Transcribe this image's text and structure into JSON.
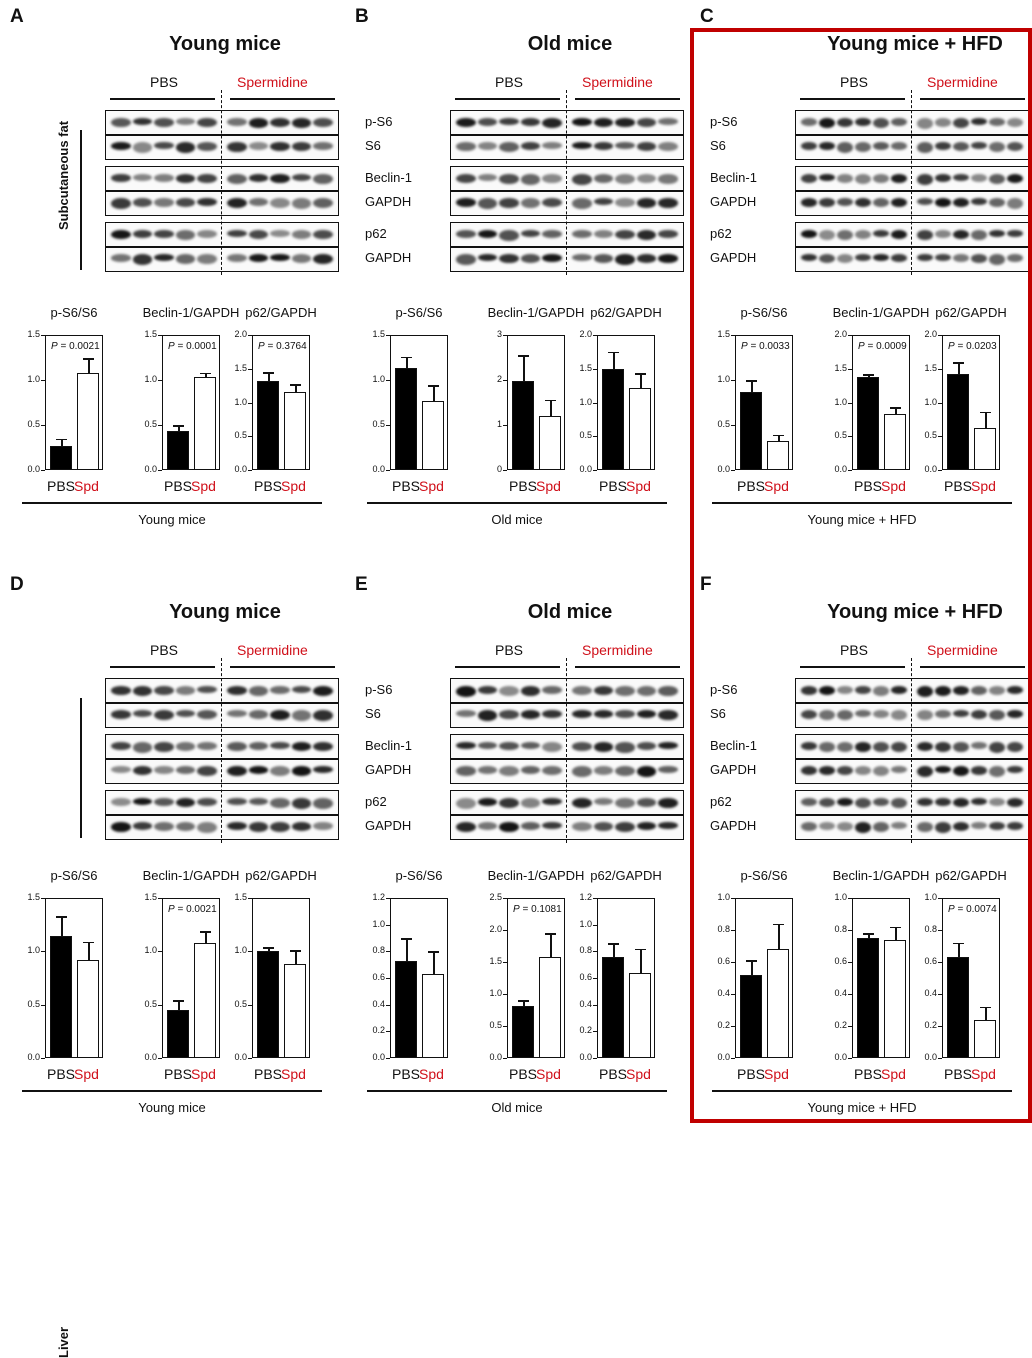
{
  "colors": {
    "pbs_bar": "#000000",
    "spd_bar": "#ffffff",
    "accent_red": "#d0101a",
    "highlight_frame": "#c00000"
  },
  "panels": [
    {
      "letter": "A",
      "title": "Young mice",
      "pbs_label": "PBS",
      "spd_label": "Spermidine",
      "side_label": "Subcutaneous fat",
      "row_labels": [],
      "group_label": "Young mice"
    },
    {
      "letter": "B",
      "title": "Old mice",
      "pbs_label": "PBS",
      "spd_label": "Spermidine",
      "side_label": "",
      "row_labels": [
        "p-S6",
        "S6",
        "Beclin-1",
        "GAPDH",
        "p62",
        "GAPDH"
      ],
      "group_label": "Old mice"
    },
    {
      "letter": "C",
      "title": "Young mice + HFD",
      "pbs_label": "PBS",
      "spd_label": "Spermidine",
      "side_label": "",
      "row_labels": [
        "p-S6",
        "S6",
        "Beclin-1",
        "GAPDH",
        "p62",
        "GAPDH"
      ],
      "group_label": "Young mice + HFD"
    },
    {
      "letter": "D",
      "title": "Young mice",
      "pbs_label": "PBS",
      "spd_label": "Spermidine",
      "side_label": "Liver",
      "row_labels": [],
      "group_label": "Young mice"
    },
    {
      "letter": "E",
      "title": "Old mice",
      "pbs_label": "PBS",
      "spd_label": "Spermidine",
      "side_label": "",
      "row_labels": [
        "p-S6",
        "S6",
        "Beclin-1",
        "GAPDH",
        "p62",
        "GAPDH"
      ],
      "group_label": "Old mice"
    },
    {
      "letter": "F",
      "title": "Young mice + HFD",
      "pbs_label": "PBS",
      "spd_label": "Spermidine",
      "side_label": "",
      "row_labels": [
        "p-S6",
        "S6",
        "Beclin-1",
        "GAPDH",
        "p62",
        "GAPDH"
      ],
      "group_label": "Young mice + HFD"
    }
  ],
  "chart_data": [
    {
      "panel": "A",
      "type": "bar",
      "title": "p-S6/S6",
      "categories": [
        "PBS",
        "Spd"
      ],
      "values": [
        0.27,
        1.08
      ],
      "errors": [
        0.08,
        0.16
      ],
      "ylim": [
        0,
        1.5
      ],
      "yticks": [
        "0.0",
        "0.5",
        "1.0",
        "1.5"
      ],
      "p_symbol": "P",
      "p_value": "= 0.0021"
    },
    {
      "panel": "A",
      "type": "bar",
      "title": "Beclin-1/GAPDH",
      "categories": [
        "PBS",
        "Spd"
      ],
      "values": [
        0.43,
        1.03
      ],
      "errors": [
        0.07,
        0.05
      ],
      "ylim": [
        0,
        1.5
      ],
      "yticks": [
        "0.0",
        "0.5",
        "1.0",
        "1.5"
      ],
      "p_symbol": "P",
      "p_value": "= 0.0001"
    },
    {
      "panel": "A",
      "type": "bar",
      "title": "p62/GAPDH",
      "categories": [
        "PBS",
        "Spd"
      ],
      "values": [
        1.32,
        1.15
      ],
      "errors": [
        0.13,
        0.12
      ],
      "ylim": [
        0,
        2.0
      ],
      "yticks": [
        "0.0",
        "0.5",
        "1.0",
        "1.5",
        "2.0"
      ],
      "p_symbol": "P",
      "p_value": "= 0.3764"
    },
    {
      "panel": "B",
      "type": "bar",
      "title": "p-S6/S6",
      "categories": [
        "PBS",
        "Spd"
      ],
      "values": [
        1.13,
        0.77
      ],
      "errors": [
        0.13,
        0.17
      ],
      "ylim": [
        0,
        1.5
      ],
      "yticks": [
        "0.0",
        "0.5",
        "1.0",
        "1.5"
      ]
    },
    {
      "panel": "B",
      "type": "bar",
      "title": "Beclin-1/GAPDH",
      "categories": [
        "PBS",
        "Spd"
      ],
      "values": [
        1.98,
        1.2
      ],
      "errors": [
        0.57,
        0.36
      ],
      "ylim": [
        0,
        3
      ],
      "yticks": [
        "0",
        "1",
        "2",
        "3"
      ]
    },
    {
      "panel": "B",
      "type": "bar",
      "title": "p62/GAPDH",
      "categories": [
        "PBS",
        "Spd"
      ],
      "values": [
        1.5,
        1.21
      ],
      "errors": [
        0.25,
        0.22
      ],
      "ylim": [
        0,
        2.0
      ],
      "yticks": [
        "0.0",
        "0.5",
        "1.0",
        "1.5",
        "2.0"
      ]
    },
    {
      "panel": "C",
      "type": "bar",
      "title": "p-S6/S6",
      "categories": [
        "PBS",
        "Spd"
      ],
      "values": [
        0.87,
        0.32
      ],
      "errors": [
        0.13,
        0.07
      ],
      "ylim": [
        0,
        1.5
      ],
      "yticks": [
        "0.0",
        "0.5",
        "1.0",
        "1.5"
      ],
      "p_symbol": "P",
      "p_value": "= 0.0033"
    },
    {
      "panel": "C",
      "type": "bar",
      "title": "Beclin-1/GAPDH",
      "categories": [
        "PBS",
        "Spd"
      ],
      "values": [
        1.38,
        0.83
      ],
      "errors": [
        0.04,
        0.1
      ],
      "ylim": [
        0,
        2.0
      ],
      "yticks": [
        "0.0",
        "0.5",
        "1.0",
        "1.5",
        "2.0"
      ],
      "p_symbol": "P",
      "p_value": "= 0.0009"
    },
    {
      "panel": "C",
      "type": "bar",
      "title": "p62/GAPDH",
      "categories": [
        "PBS",
        "Spd"
      ],
      "values": [
        1.42,
        0.62
      ],
      "errors": [
        0.18,
        0.24
      ],
      "ylim": [
        0,
        2.0
      ],
      "yticks": [
        "0.0",
        "0.5",
        "1.0",
        "1.5",
        "2.0"
      ],
      "p_symbol": "P",
      "p_value": "= 0.0203"
    },
    {
      "panel": "D",
      "type": "bar",
      "title": "p-S6/S6",
      "categories": [
        "PBS",
        "Spd"
      ],
      "values": [
        1.14,
        0.92
      ],
      "errors": [
        0.19,
        0.17
      ],
      "ylim": [
        0,
        1.5
      ],
      "yticks": [
        "0.0",
        "0.5",
        "1.0",
        "1.5"
      ]
    },
    {
      "panel": "D",
      "type": "bar",
      "title": "Beclin-1/GAPDH",
      "categories": [
        "PBS",
        "Spd"
      ],
      "values": [
        0.45,
        1.08
      ],
      "errors": [
        0.09,
        0.11
      ],
      "ylim": [
        0,
        1.5
      ],
      "yticks": [
        "0.0",
        "0.5",
        "1.0",
        "1.5"
      ],
      "p_symbol": "P",
      "p_value": "= 0.0021"
    },
    {
      "panel": "D",
      "type": "bar",
      "title": "p62/GAPDH",
      "categories": [
        "PBS",
        "Spd"
      ],
      "values": [
        1.0,
        0.88
      ],
      "errors": [
        0.04,
        0.13
      ],
      "ylim": [
        0,
        1.5
      ],
      "yticks": [
        "0.0",
        "0.5",
        "1.0",
        "1.5"
      ]
    },
    {
      "panel": "E",
      "type": "bar",
      "title": "p-S6/S6",
      "categories": [
        "PBS",
        "Spd"
      ],
      "values": [
        0.73,
        0.63
      ],
      "errors": [
        0.17,
        0.17
      ],
      "ylim": [
        0,
        1.2
      ],
      "yticks": [
        "0.0",
        "0.2",
        "0.4",
        "0.6",
        "0.8",
        "1.0",
        "1.2"
      ]
    },
    {
      "panel": "E",
      "type": "bar",
      "title": "Beclin-1/GAPDH",
      "categories": [
        "PBS",
        "Spd"
      ],
      "values": [
        0.82,
        1.58
      ],
      "errors": [
        0.08,
        0.37
      ],
      "ylim": [
        0,
        2.5
      ],
      "yticks": [
        "0.0",
        "0.5",
        "1.0",
        "1.5",
        "2.0",
        "2.5"
      ],
      "p_symbol": "P",
      "p_value": "= 0.1081"
    },
    {
      "panel": "E",
      "type": "bar",
      "title": "p62/GAPDH",
      "categories": [
        "PBS",
        "Spd"
      ],
      "values": [
        0.76,
        0.64
      ],
      "errors": [
        0.1,
        0.18
      ],
      "ylim": [
        0,
        1.2
      ],
      "yticks": [
        "0.0",
        "0.2",
        "0.4",
        "0.6",
        "0.8",
        "1.0",
        "1.2"
      ]
    },
    {
      "panel": "F",
      "type": "bar",
      "title": "p-S6/S6",
      "categories": [
        "PBS",
        "Spd"
      ],
      "values": [
        0.52,
        0.68
      ],
      "errors": [
        0.09,
        0.16
      ],
      "ylim": [
        0,
        1.0
      ],
      "yticks": [
        "0.0",
        "0.2",
        "0.4",
        "0.6",
        "0.8",
        "1.0"
      ]
    },
    {
      "panel": "F",
      "type": "bar",
      "title": "Beclin-1/GAPDH",
      "categories": [
        "PBS",
        "Spd"
      ],
      "values": [
        0.75,
        0.74
      ],
      "errors": [
        0.03,
        0.08
      ],
      "ylim": [
        0,
        1.0
      ],
      "yticks": [
        "0.0",
        "0.2",
        "0.4",
        "0.6",
        "0.8",
        "1.0"
      ]
    },
    {
      "panel": "F",
      "type": "bar",
      "title": "p62/GAPDH",
      "categories": [
        "PBS",
        "Spd"
      ],
      "values": [
        0.63,
        0.24
      ],
      "errors": [
        0.09,
        0.08
      ],
      "ylim": [
        0,
        1.0
      ],
      "yticks": [
        "0.0",
        "0.2",
        "0.4",
        "0.6",
        "0.8",
        "1.0"
      ],
      "p_symbol": "P",
      "p_value": "= 0.0074"
    }
  ]
}
